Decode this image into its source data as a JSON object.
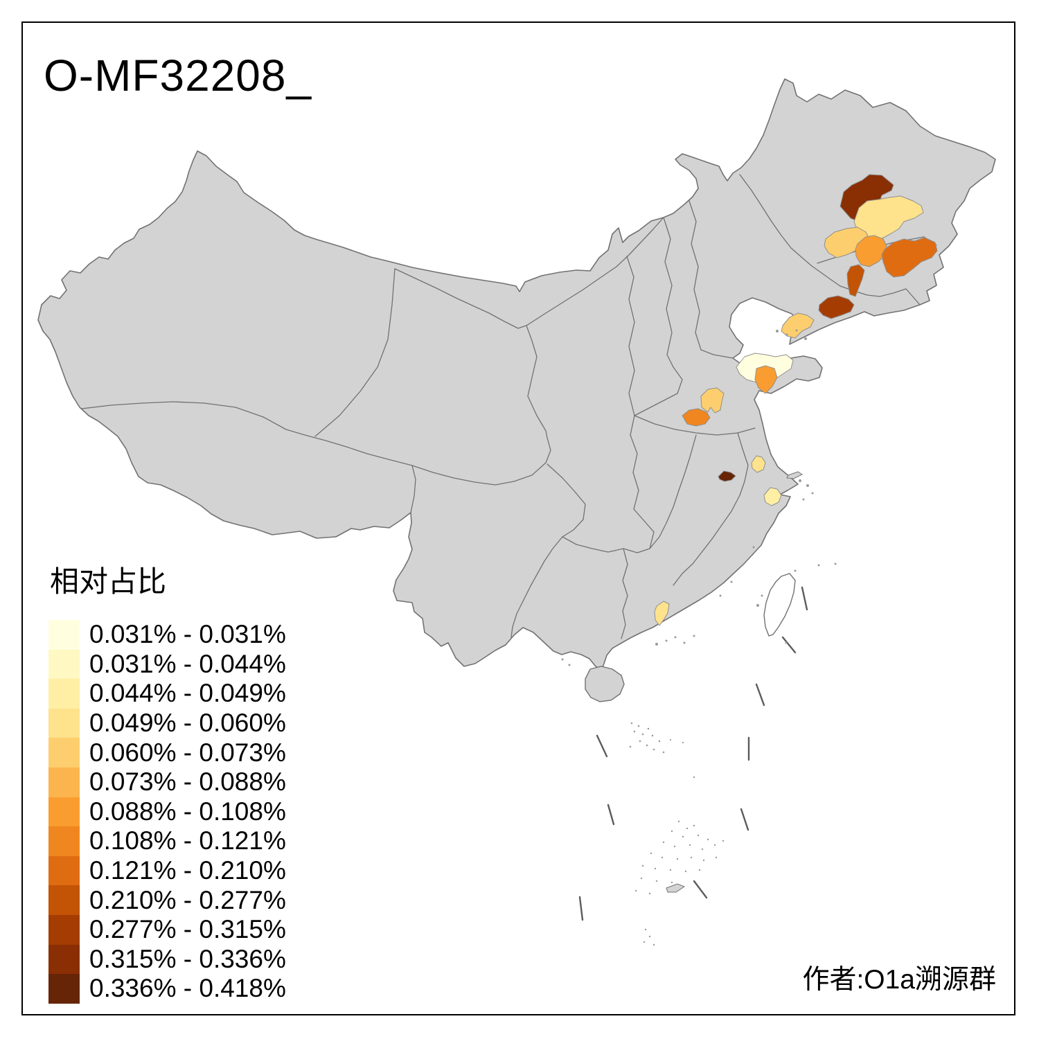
{
  "title": "O-MF32208_",
  "attribution": "作者:O1a溯源群",
  "legend": {
    "title": "相对占比"
  },
  "map": {
    "base_fill": "#d3d3d3",
    "boundary_color": "#717171",
    "sea_fill": "#ffffff",
    "dash_line_color": "#5b5b5b"
  },
  "chart_data": {
    "type": "choropleth",
    "title": "O-MF32208_",
    "legend_title": "相对占比",
    "unit": "%",
    "legend_position": "bottom-left",
    "base_region_color": "#d3d3d3",
    "classes": [
      {
        "range": "0.031% - 0.031%",
        "color": "#FFFFE0"
      },
      {
        "range": "0.031% - 0.044%",
        "color": "#FFF8C2"
      },
      {
        "range": "0.044% - 0.049%",
        "color": "#FEEFA4"
      },
      {
        "range": "0.049% - 0.060%",
        "color": "#FEE28C"
      },
      {
        "range": "0.060% - 0.073%",
        "color": "#FDCE6D"
      },
      {
        "range": "0.073% - 0.088%",
        "color": "#FCB44E"
      },
      {
        "range": "0.088% - 0.108%",
        "color": "#FA9D31"
      },
      {
        "range": "0.108% - 0.121%",
        "color": "#F0861F"
      },
      {
        "range": "0.121% - 0.210%",
        "color": "#E06C12"
      },
      {
        "range": "0.210% - 0.277%",
        "color": "#C35305"
      },
      {
        "range": "0.277% - 0.315%",
        "color": "#A53D03"
      },
      {
        "range": "0.315% - 0.336%",
        "color": "#8A2E04"
      },
      {
        "range": "0.336% - 0.418%",
        "color": "#652506"
      }
    ],
    "regions": [
      {
        "id": "r1",
        "locale": "northeast-north",
        "range": "0.315% - 0.336%",
        "color": "#8A2E04"
      },
      {
        "id": "r2",
        "locale": "northeast-center",
        "range": "0.049% - 0.060%",
        "color": "#FEE28C"
      },
      {
        "id": "r3",
        "locale": "northeast-west",
        "range": "0.060% - 0.073%",
        "color": "#FDCE6D"
      },
      {
        "id": "r4",
        "locale": "northeast-mid",
        "range": "0.088% - 0.108%",
        "color": "#FA9D31"
      },
      {
        "id": "r5",
        "locale": "northeast-east",
        "range": "0.121% - 0.210%",
        "color": "#E06C12"
      },
      {
        "id": "r6",
        "locale": "northeast-south-strip",
        "range": "0.210% - 0.277%",
        "color": "#C35305"
      },
      {
        "id": "r7",
        "locale": "southeast-liaoning-coast",
        "range": "0.277% - 0.315%",
        "color": "#A53D03"
      },
      {
        "id": "r8",
        "locale": "liaodong-peninsula-tip",
        "range": "0.060% - 0.073%",
        "color": "#FDCE6D"
      },
      {
        "id": "r9",
        "locale": "shandong-north",
        "range": "0.031% - 0.031%",
        "color": "#FFFFE0"
      },
      {
        "id": "r10",
        "locale": "shandong-east-coast",
        "range": "0.088% - 0.108%",
        "color": "#FA9D31"
      },
      {
        "id": "r11",
        "locale": "shandong-west",
        "range": "0.060% - 0.073%",
        "color": "#FDCE6D"
      },
      {
        "id": "r12",
        "locale": "shandong-henan-border",
        "range": "0.108% - 0.121%",
        "color": "#F0861F"
      },
      {
        "id": "r13",
        "locale": "jiangsu-center",
        "range": "0.049% - 0.060%",
        "color": "#FEE28C"
      },
      {
        "id": "r14",
        "locale": "anhui-center",
        "range": "0.336% - 0.418%",
        "color": "#652506"
      },
      {
        "id": "r15",
        "locale": "zhejiang-north",
        "range": "0.044% - 0.049%",
        "color": "#FEEFA4"
      },
      {
        "id": "r16",
        "locale": "guangdong-center",
        "range": "0.049% - 0.060%",
        "color": "#FEE28C"
      }
    ]
  }
}
